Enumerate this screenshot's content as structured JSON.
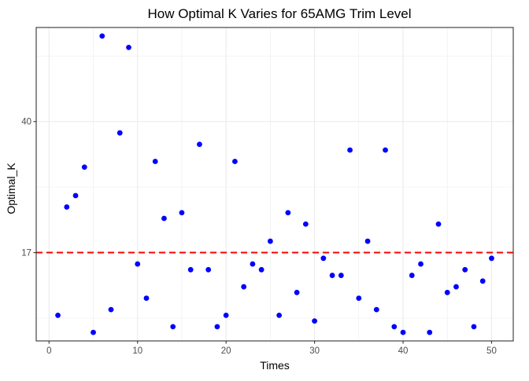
{
  "chart_data": {
    "type": "scatter",
    "title": "How Optimal K Varies for 65AMG Trim Level",
    "xlabel": "Times",
    "ylabel": "Optimal_K",
    "xlim": [
      -1.45,
      52.45
    ],
    "ylim": [
      1.5,
      56.5
    ],
    "x_ticks": [
      0,
      10,
      20,
      30,
      40,
      50
    ],
    "x_tick_labels": [
      "0",
      "10",
      "20",
      "30",
      "40",
      "50"
    ],
    "y_ticks": [
      17,
      40
    ],
    "y_tick_labels": [
      "17",
      "40"
    ],
    "grid": true,
    "legend": "none",
    "point_color": "#0000ff",
    "reference_line": {
      "y": 17,
      "color": "#ff0000",
      "style": "dashed"
    },
    "x": [
      1,
      2,
      3,
      4,
      5,
      6,
      7,
      8,
      9,
      10,
      11,
      12,
      13,
      14,
      15,
      16,
      17,
      18,
      19,
      20,
      21,
      22,
      23,
      24,
      25,
      26,
      27,
      28,
      29,
      30,
      31,
      32,
      33,
      34,
      35,
      36,
      37,
      38,
      39,
      40,
      41,
      42,
      43,
      44,
      45,
      46,
      47,
      48,
      49,
      50
    ],
    "y": [
      6,
      25,
      27,
      32,
      3,
      55,
      7,
      38,
      53,
      15,
      9,
      33,
      23,
      4,
      24,
      14,
      36,
      14,
      4,
      6,
      33,
      11,
      15,
      14,
      19,
      6,
      24,
      10,
      22,
      5,
      16,
      13,
      13,
      35,
      9,
      19,
      7,
      35,
      4,
      3,
      13,
      15,
      3,
      22,
      10,
      11,
      14,
      4,
      12,
      16
    ]
  }
}
